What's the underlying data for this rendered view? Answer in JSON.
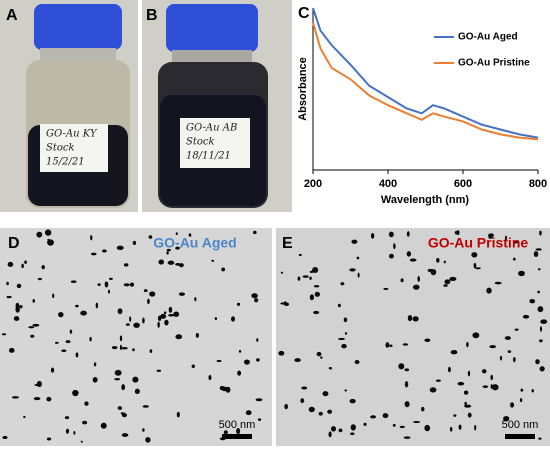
{
  "panel_labels": [
    "A",
    "B",
    "C",
    "D",
    "E"
  ],
  "photos": [
    {
      "jar_label": [
        "GO-Au KY",
        "Stock",
        "15/2/21"
      ]
    },
    {
      "jar_label": [
        "GO-Au AB",
        "Stock",
        "18/11/21"
      ]
    }
  ],
  "chart_data": {
    "type": "line",
    "xlabel": "Wavelength (nm)",
    "ylabel": "Absorbance",
    "x": [
      200,
      220,
      250,
      300,
      350,
      400,
      450,
      490,
      520,
      550,
      600,
      650,
      700,
      750,
      800
    ],
    "series": [
      {
        "name": "GO-Au Aged",
        "color": "#4472c4",
        "values": [
          1.0,
          0.86,
          0.77,
          0.65,
          0.52,
          0.45,
          0.38,
          0.35,
          0.4,
          0.38,
          0.33,
          0.28,
          0.25,
          0.22,
          0.2
        ]
      },
      {
        "name": "GO-Au Pristine",
        "color": "#ed7d31",
        "values": [
          0.91,
          0.75,
          0.63,
          0.56,
          0.46,
          0.4,
          0.35,
          0.31,
          0.35,
          0.33,
          0.3,
          0.25,
          0.22,
          0.2,
          0.19
        ]
      }
    ],
    "xlim": [
      200,
      800
    ],
    "xticks": [
      200,
      400,
      600,
      800
    ],
    "ylim": [
      0,
      1
    ],
    "legend": "upper right"
  },
  "micrographs": [
    {
      "title": "GO-Au Aged",
      "title_color": "#4a86c8",
      "scale_bar": "500 nm"
    },
    {
      "title": "GO-Au Pristine",
      "title_color": "#c00000",
      "scale_bar": "500 nm"
    }
  ]
}
